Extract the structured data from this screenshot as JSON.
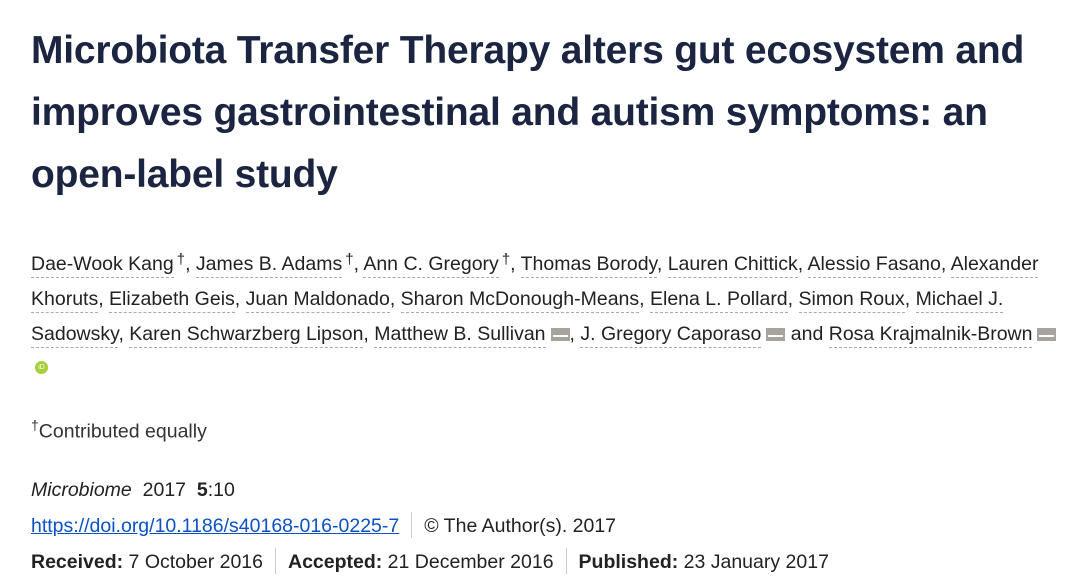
{
  "title": "Microbiota Transfer Therapy alters gut ecosystem and improves gastrointestinal and autism symptoms: an open-label study",
  "authors": [
    {
      "name": "Dae-Wook Kang",
      "mark": "†",
      "sep": ", "
    },
    {
      "name": "James B. Adams",
      "mark": "†",
      "sep": ", "
    },
    {
      "name": "Ann C. Gregory",
      "mark": "†",
      "sep": ", "
    },
    {
      "name": "Thomas Borody",
      "sep": ", "
    },
    {
      "name": "Lauren Chittick",
      "sep": ", "
    },
    {
      "name": "Alessio Fasano",
      "sep": ", "
    },
    {
      "name": "Alexander Khoruts",
      "sep": ", "
    },
    {
      "name": "Elizabeth Geis",
      "sep": ", "
    },
    {
      "name": "Juan Maldonado",
      "sep": ", "
    },
    {
      "name": "Sharon McDonough-Means",
      "sep": ", "
    },
    {
      "name": "Elena L. Pollard",
      "sep": ", "
    },
    {
      "name": "Simon Roux",
      "sep": ", "
    },
    {
      "name": "Michael J. Sadowsky",
      "sep": ", "
    },
    {
      "name": "Karen Schwarzberg Lipson",
      "sep": ", "
    },
    {
      "name": "Matthew B. Sullivan",
      "email": true,
      "sep": ", "
    },
    {
      "name": "J. Gregory Caporaso",
      "email": true,
      "sep": " and "
    },
    {
      "name": "Rosa Krajmalnik-Brown",
      "email": true,
      "orcid": true,
      "sep": ""
    }
  ],
  "contrib": {
    "mark": "†",
    "text": "Contributed equally"
  },
  "journal": {
    "name": "Microbiome",
    "year": "2017",
    "volume": "5",
    "article": ":10"
  },
  "doi": "https://doi.org/10.1186/s40168-016-0225-7",
  "copyright": "© The Author(s). 2017",
  "dates": {
    "received_label": "Received:",
    "received": " 7 October 2016",
    "accepted_label": "Accepted:",
    "accepted": " 21 December 2016",
    "published_label": "Published:",
    "published": " 23 January 2017"
  },
  "colors": {
    "title": "#1b2441",
    "link": "#0b52c6",
    "orcid": "#a6ce39"
  }
}
